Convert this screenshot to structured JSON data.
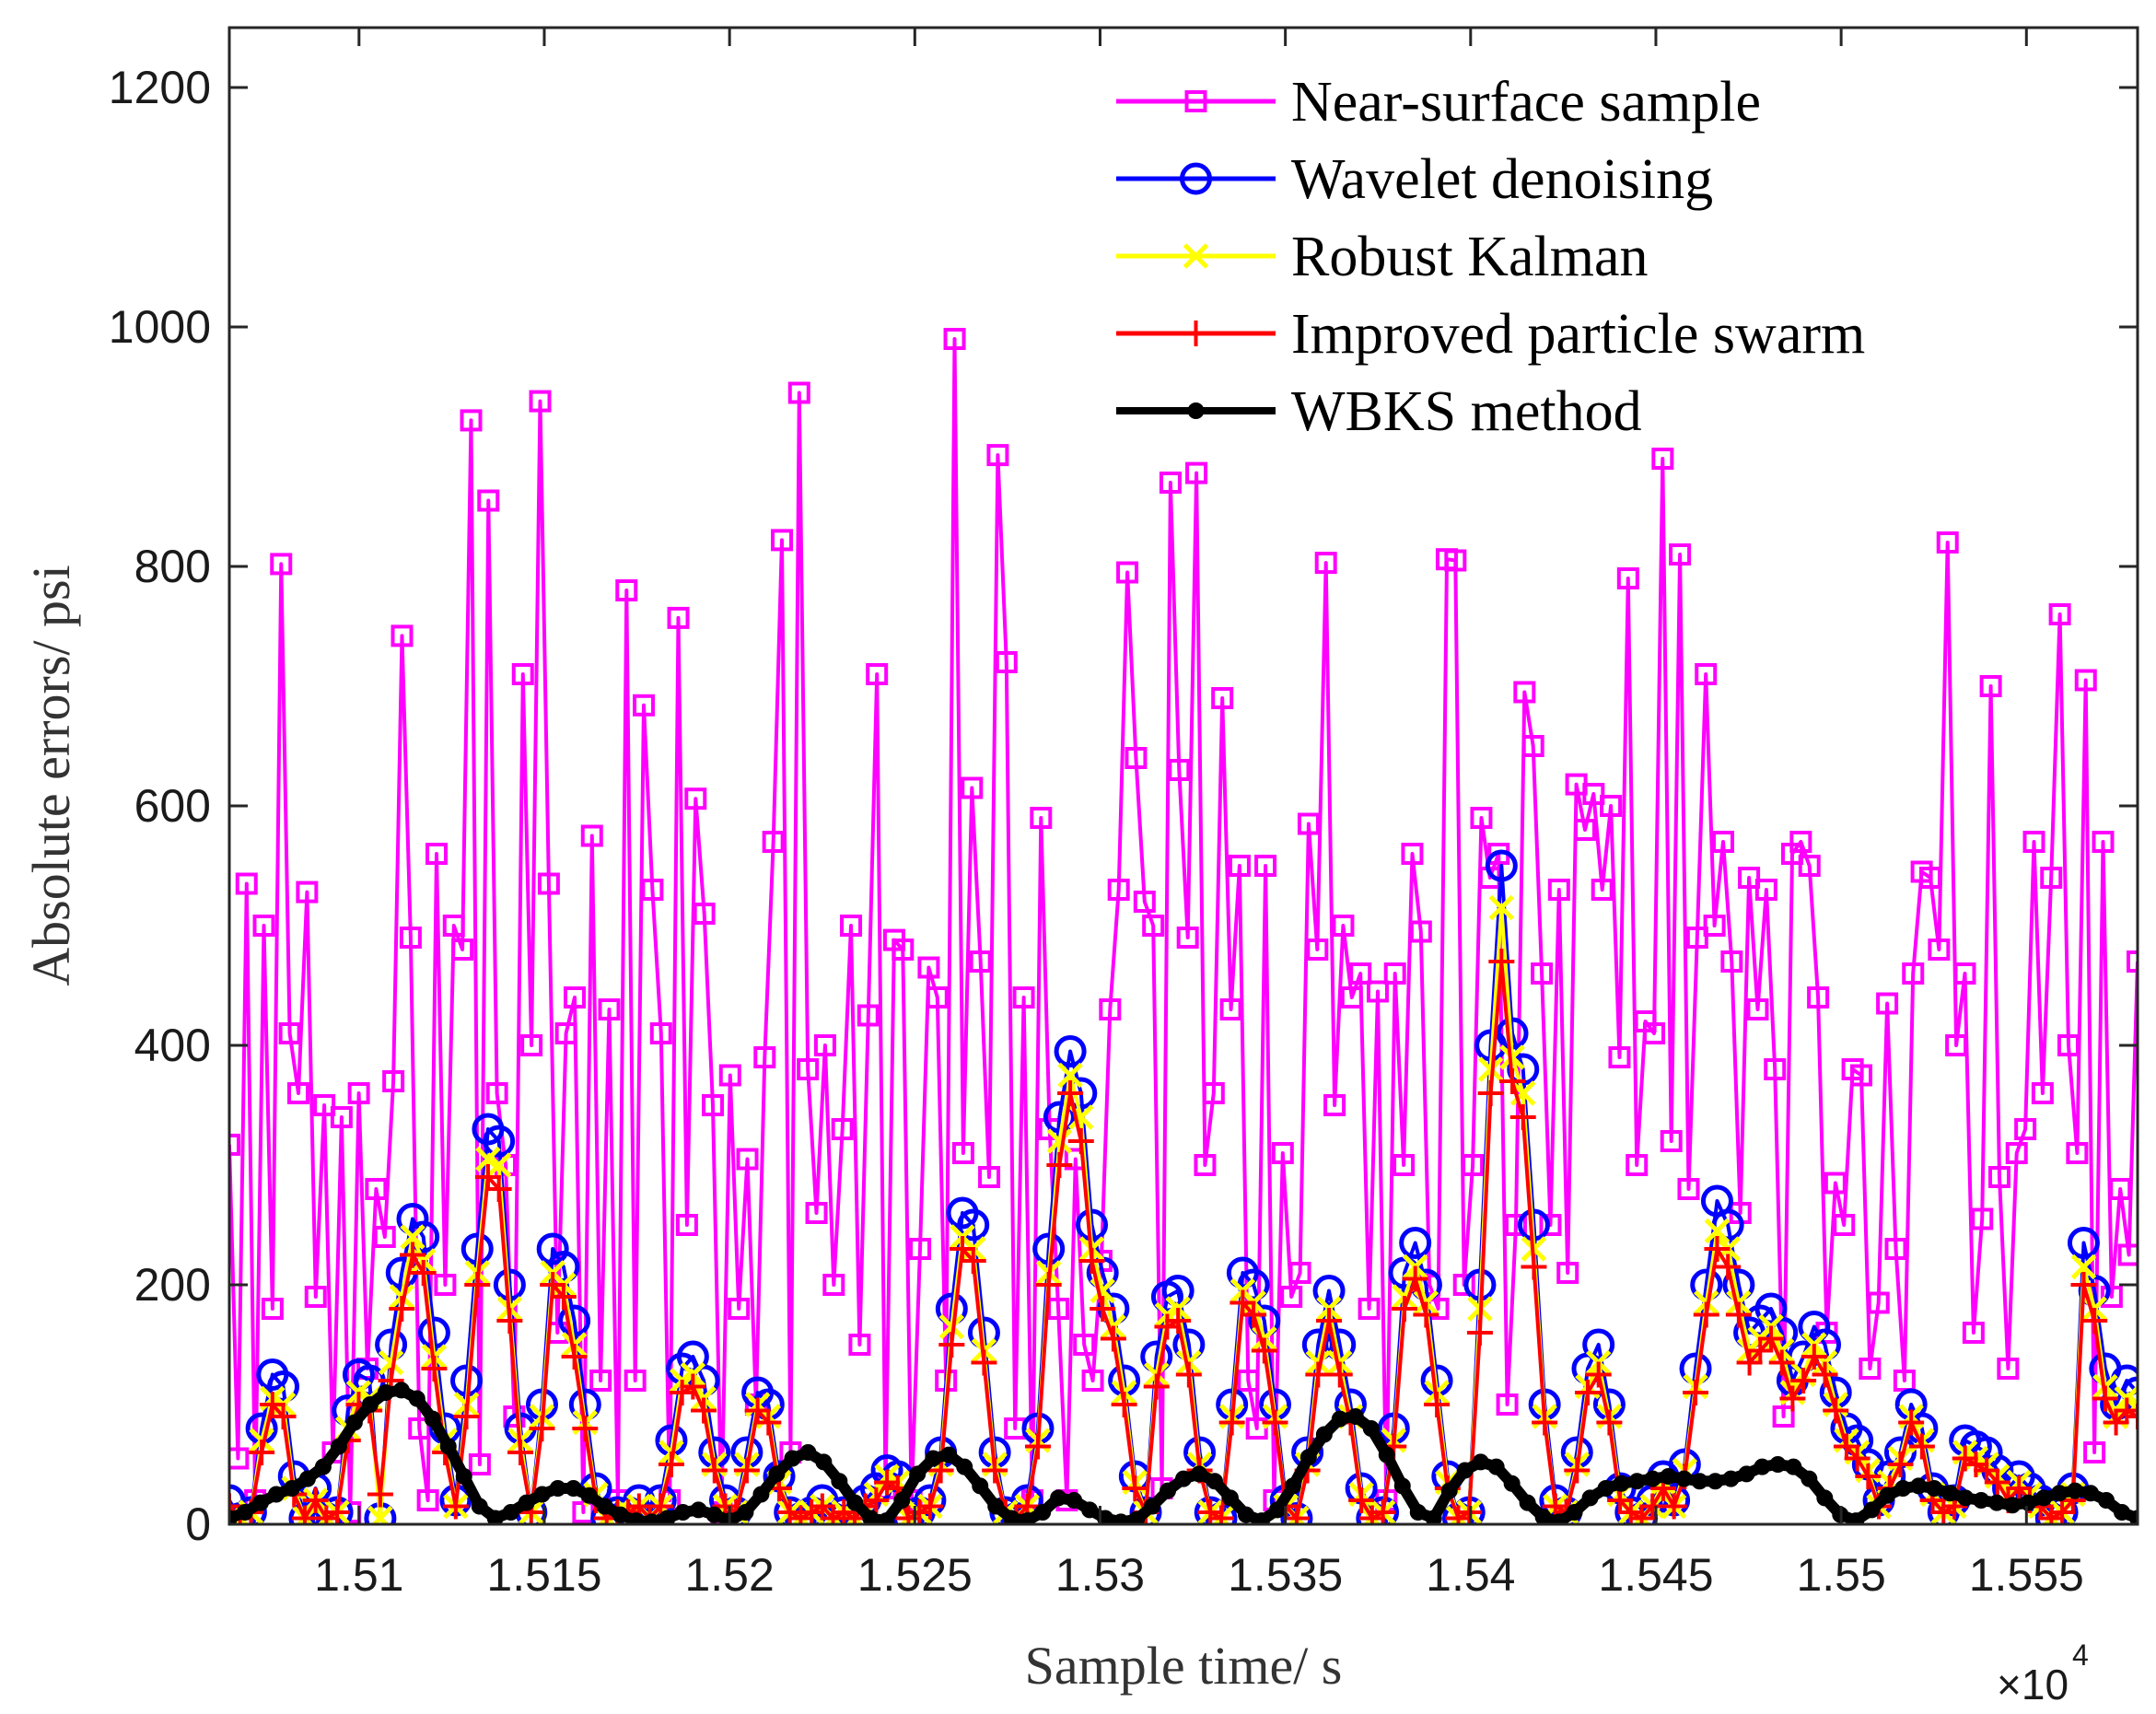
{
  "chart_data": {
    "type": "line",
    "xlabel": "Sample time/ s",
    "ylabel": "Absolute errors/ psi",
    "x_exponent_label": {
      "base": "×10",
      "exponent": "4"
    },
    "xlim": [
      15065,
      15580
    ],
    "ylim": [
      0,
      1250
    ],
    "x_ticks": [
      15100,
      15150,
      15200,
      15250,
      15300,
      15350,
      15400,
      15450,
      15500,
      15550
    ],
    "x_tick_labels": [
      "1.51",
      "1.515",
      "1.52",
      "1.525",
      "1.53",
      "1.535",
      "1.54",
      "1.545",
      "1.55",
      "1.555"
    ],
    "y_ticks": [
      0,
      200,
      400,
      600,
      800,
      1000,
      1200
    ],
    "y_tick_labels": [
      "0",
      "200",
      "400",
      "600",
      "800",
      "1000",
      "1200"
    ],
    "grid": false,
    "legend_position": "top-right",
    "x_step": 3,
    "series": [
      {
        "name": "Near-surface sample",
        "color": "#ff00ff",
        "marker": "square",
        "line_width": 4,
        "values": [
          317,
          55,
          535,
          20,
          500,
          180,
          802,
          410,
          360,
          528,
          190,
          350,
          60,
          340,
          10,
          360,
          130,
          280,
          240,
          370,
          742,
          490,
          80,
          20,
          560,
          200,
          500,
          480,
          922,
          50,
          855,
          360,
          300,
          90,
          710,
          400,
          938,
          535,
          160,
          410,
          440,
          10,
          575,
          120,
          430,
          20,
          780,
          120,
          684,
          530,
          410,
          20,
          757,
          250,
          606,
          510,
          350,
          10,
          375,
          180,
          305,
          100,
          390,
          570,
          822,
          60,
          945,
          380,
          260,
          400,
          200,
          330,
          500,
          150,
          425,
          710,
          30,
          488,
          480,
          20,
          230,
          465,
          440,
          120,
          990,
          310,
          615,
          470,
          290,
          893,
          720,
          80,
          440,
          20,
          590,
          330,
          180,
          20,
          305,
          150,
          120,
          220,
          430,
          530,
          795,
          640,
          520,
          500,
          30,
          870,
          630,
          490,
          878,
          300,
          360,
          690,
          430,
          550,
          120,
          80,
          550,
          20,
          310,
          190,
          210,
          585,
          480,
          803,
          350,
          500,
          440,
          460,
          180,
          445,
          20,
          460,
          300,
          560,
          495,
          200,
          180,
          806,
          805,
          200,
          300,
          590,
          540,
          560,
          100,
          250,
          695,
          650,
          460,
          250,
          530,
          210,
          618,
          580,
          610,
          530,
          600,
          390,
          790,
          300,
          420,
          410,
          890,
          320,
          810,
          280,
          490,
          710,
          500,
          570,
          470,
          260,
          540,
          430,
          530,
          380,
          90,
          560,
          570,
          550,
          440,
          160,
          285,
          250,
          380,
          375,
          130,
          185,
          435,
          230,
          120,
          460,
          545,
          540,
          480,
          820,
          400,
          460,
          160,
          255,
          700,
          290,
          130,
          310,
          330,
          570,
          360,
          540,
          760,
          400,
          310,
          705,
          60,
          570,
          190,
          280,
          225,
          470
        ]
      },
      {
        "name": "Wavelet denoising",
        "color": "#0000ff",
        "marker": "circle",
        "line_width": 4,
        "values": [
          20,
          5,
          10,
          80,
          125,
          115,
          40,
          5,
          30,
          5,
          10,
          95,
          125,
          120,
          5,
          150,
          210,
          255,
          240,
          160,
          80,
          20,
          120,
          230,
          330,
          320,
          200,
          80,
          10,
          100,
          230,
          215,
          170,
          100,
          30,
          5,
          10,
          10,
          20,
          5,
          20,
          70,
          130,
          140,
          120,
          60,
          20,
          10,
          60,
          110,
          100,
          40,
          10,
          5,
          10,
          20,
          5,
          10,
          5,
          20,
          30,
          45,
          40,
          5,
          10,
          20,
          60,
          180,
          260,
          250,
          160,
          60,
          10,
          5,
          20,
          80,
          230,
          340,
          395,
          360,
          250,
          210,
          180,
          120,
          40,
          10,
          140,
          190,
          195,
          150,
          60,
          10,
          5,
          100,
          210,
          200,
          170,
          100,
          20,
          5,
          60,
          150,
          195,
          150,
          100,
          30,
          5,
          10,
          80,
          210,
          235,
          200,
          120,
          40,
          5,
          10,
          200,
          400,
          550,
          410,
          380,
          250,
          100,
          20,
          10,
          60,
          130,
          150,
          100,
          30,
          10,
          5,
          20,
          40,
          20,
          50,
          130,
          200,
          270,
          250,
          200,
          160,
          170,
          180,
          160,
          120,
          140,
          165,
          150,
          110,
          80,
          70,
          50,
          20,
          40,
          60,
          100,
          80,
          30,
          10,
          20,
          70,
          65,
          60,
          45,
          30,
          40,
          30,
          20,
          5,
          10,
          30,
          235,
          195,
          130,
          100,
          120,
          110
        ]
      },
      {
        "name": "Robust Kalman",
        "color": "#ffff00",
        "marker": "x",
        "line_width": 4,
        "values": [
          5,
          5,
          10,
          70,
          105,
          100,
          30,
          5,
          20,
          5,
          10,
          80,
          110,
          105,
          5,
          135,
          190,
          240,
          220,
          140,
          70,
          15,
          100,
          210,
          305,
          300,
          180,
          70,
          10,
          90,
          210,
          200,
          150,
          85,
          25,
          5,
          10,
          10,
          15,
          5,
          15,
          60,
          120,
          125,
          105,
          50,
          15,
          10,
          50,
          100,
          90,
          35,
          10,
          5,
          10,
          15,
          5,
          10,
          5,
          15,
          25,
          40,
          35,
          5,
          10,
          15,
          50,
          165,
          240,
          230,
          145,
          50,
          10,
          5,
          15,
          70,
          210,
          320,
          375,
          340,
          230,
          195,
          165,
          110,
          35,
          10,
          125,
          175,
          180,
          135,
          50,
          10,
          5,
          90,
          195,
          185,
          155,
          90,
          15,
          5,
          50,
          135,
          180,
          135,
          90,
          25,
          5,
          10,
          70,
          190,
          215,
          185,
          110,
          35,
          5,
          10,
          180,
          380,
          515,
          390,
          360,
          230,
          90,
          15,
          10,
          50,
          115,
          135,
          90,
          25,
          10,
          5,
          15,
          35,
          15,
          45,
          115,
          185,
          245,
          230,
          185,
          145,
          155,
          165,
          145,
          110,
          125,
          150,
          135,
          100,
          70,
          60,
          45,
          15,
          35,
          55,
          90,
          70,
          25,
          10,
          15,
          60,
          55,
          50,
          40,
          25,
          35,
          25,
          15,
          5,
          10,
          25,
          215,
          180,
          115,
          90,
          105,
          100
        ]
      },
      {
        "name": "Improved particle swarm",
        "color": "#ff0000",
        "marker": "plus",
        "line_width": 4,
        "values": [
          15,
          5,
          10,
          60,
          100,
          90,
          25,
          5,
          20,
          5,
          10,
          70,
          100,
          95,
          25,
          120,
          180,
          225,
          210,
          130,
          60,
          15,
          90,
          200,
          290,
          280,
          170,
          60,
          10,
          80,
          200,
          190,
          140,
          80,
          20,
          5,
          10,
          10,
          15,
          5,
          15,
          50,
          110,
          115,
          95,
          45,
          15,
          10,
          45,
          95,
          85,
          30,
          10,
          5,
          10,
          15,
          5,
          10,
          5,
          15,
          20,
          35,
          30,
          5,
          10,
          15,
          45,
          150,
          230,
          220,
          135,
          45,
          10,
          5,
          15,
          65,
          200,
          300,
          360,
          320,
          220,
          180,
          155,
          100,
          30,
          10,
          115,
          165,
          170,
          125,
          45,
          10,
          5,
          85,
          185,
          175,
          145,
          85,
          15,
          5,
          45,
          125,
          170,
          125,
          85,
          20,
          5,
          10,
          65,
          180,
          205,
          175,
          100,
          30,
          5,
          10,
          160,
          360,
          470,
          370,
          340,
          215,
          85,
          15,
          10,
          45,
          110,
          125,
          85,
          20,
          10,
          5,
          15,
          30,
          15,
          40,
          110,
          175,
          230,
          215,
          175,
          135,
          145,
          155,
          135,
          105,
          120,
          140,
          125,
          95,
          65,
          55,
          40,
          15,
          30,
          50,
          85,
          65,
          20,
          10,
          15,
          55,
          50,
          45,
          35,
          20,
          30,
          20,
          15,
          5,
          10,
          20,
          200,
          170,
          105,
          85,
          95,
          90
        ]
      },
      {
        "name": "WBKS method",
        "color": "#000000",
        "marker": "star",
        "line_width": 12,
        "values": [
          5,
          10,
          18,
          25,
          30,
          38,
          48,
          65,
          85,
          100,
          110,
          112,
          105,
          88,
          65,
          40,
          15,
          5,
          10,
          18,
          25,
          30,
          30,
          24,
          15,
          8,
          3,
          2,
          5,
          10,
          12,
          8,
          3,
          10,
          25,
          42,
          55,
          60,
          52,
          36,
          18,
          5,
          3,
          20,
          42,
          55,
          58,
          48,
          32,
          15,
          5,
          3,
          10,
          22,
          20,
          12,
          5,
          2,
          4,
          15,
          28,
          38,
          42,
          36,
          22,
          8,
          3,
          12,
          32,
          56,
          75,
          88,
          90,
          80,
          58,
          32,
          10,
          5,
          28,
          45,
          52,
          48,
          34,
          18,
          6,
          2,
          10,
          22,
          30,
          34,
          36,
          38,
          40,
          38,
          36,
          36,
          38,
          42,
          48,
          50,
          48,
          38,
          22,
          8,
          3,
          12,
          24,
          30,
          32,
          30,
          26,
          22,
          20,
          18,
          16,
          18,
          22,
          26,
          28,
          26,
          20,
          10,
          5
        ]
      }
    ]
  }
}
